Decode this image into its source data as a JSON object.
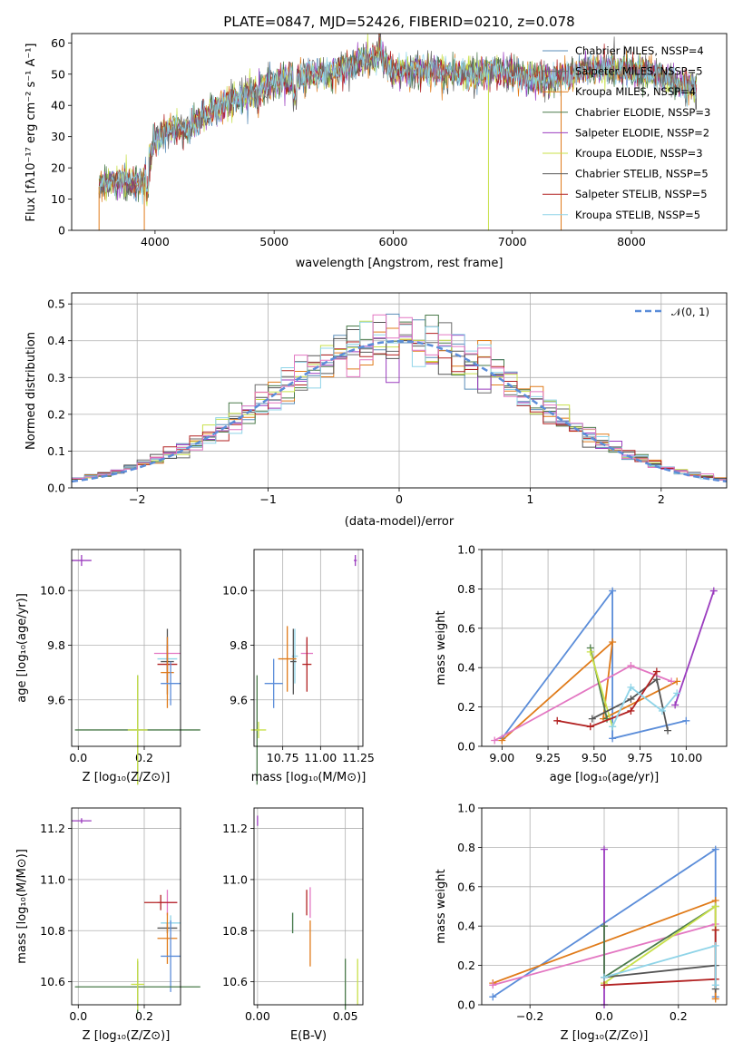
{
  "chart_data": [
    {
      "id": "spectrum",
      "type": "line",
      "title": "PLATE=0847, MJD=52426, FIBERID=0210, z=0.078",
      "xlabel": "wavelength [Angstrom, rest frame]",
      "ylabel": "Flux [fλ10⁻¹⁷ erg cm⁻² s⁻¹ A⁻¹]",
      "xlim": [
        3300,
        8800
      ],
      "ylim": [
        0,
        63
      ],
      "xticks": [
        4000,
        5000,
        6000,
        7000,
        8000
      ],
      "yticks": [
        0,
        10,
        20,
        30,
        40,
        50,
        60
      ],
      "grid": false,
      "legend_position": "top-right",
      "continuum": [
        [
          3530,
          14
        ],
        [
          3700,
          16
        ],
        [
          3900,
          15
        ],
        [
          3950,
          22
        ],
        [
          4000,
          29
        ],
        [
          4100,
          32
        ],
        [
          4300,
          33
        ],
        [
          4500,
          39
        ],
        [
          4800,
          44
        ],
        [
          5000,
          47
        ],
        [
          5200,
          49
        ],
        [
          5500,
          51
        ],
        [
          5800,
          55
        ],
        [
          5900,
          55
        ],
        [
          6000,
          51
        ],
        [
          6300,
          51
        ],
        [
          6600,
          50
        ],
        [
          6900,
          51
        ],
        [
          7300,
          48
        ],
        [
          7600,
          51
        ],
        [
          7800,
          52
        ],
        [
          8000,
          51
        ],
        [
          8200,
          50
        ],
        [
          8400,
          47
        ],
        [
          8550,
          45
        ]
      ],
      "series": [
        {
          "name": "Chabrier MILES, N_SSP=4",
          "color": "#5b8db8"
        },
        {
          "name": "Salpeter MILES, N_SSP=5",
          "color": "#6b6b6b"
        },
        {
          "name": "Kroupa MILES, N_SSP=4",
          "color": "#e07b1a"
        },
        {
          "name": "Chabrier ELODIE, N_SSP=3",
          "color": "#4a7a4a"
        },
        {
          "name": "Salpeter ELODIE, N_SSP=2",
          "color": "#9b3dbf"
        },
        {
          "name": "Kroupa ELODIE, N_SSP=3",
          "color": "#c8e04a"
        },
        {
          "name": "Chabrier STELIB, N_SSP=5",
          "color": "#555555"
        },
        {
          "name": "Salpeter STELIB, N_SSP=5",
          "color": "#b22222"
        },
        {
          "name": "Kroupa STELIB, N_SSP=5",
          "color": "#8fd4e8"
        }
      ]
    },
    {
      "id": "residuals",
      "type": "histogram",
      "xlabel": "(data-model)/error",
      "ylabel": "Normed distribution",
      "xlim": [
        -2.5,
        2.5
      ],
      "ylim": [
        0,
        0.53
      ],
      "xticks": [
        -2,
        -1,
        0,
        1,
        2
      ],
      "xtick_labels": [
        "−2",
        "−1",
        "0",
        "1",
        "2"
      ],
      "yticks": [
        0,
        0.1,
        0.2,
        0.3,
        0.4,
        0.5
      ],
      "ytick_labels": [
        "0.0",
        "0.1",
        "0.2",
        "0.3",
        "0.4",
        "0.5"
      ],
      "grid": true,
      "legend_position": "top-right",
      "reference_curve": {
        "name": "𝒩(0, 1)",
        "color": "#5b8dd9"
      },
      "bin_width": 0.1,
      "bin_start": -2.5,
      "series_colors": [
        "#5b8db8",
        "#6b6b6b",
        "#e07b1a",
        "#4a7a4a",
        "#9b3dbf",
        "#c8e04a",
        "#555555",
        "#b22222",
        "#8fd4e8",
        "#e377c2"
      ]
    },
    {
      "id": "age-vs-Z",
      "type": "errorbar",
      "xlabel": "Z [log₁₀(Z/Z⊙)]",
      "ylabel": "age  [log₁₀(age/yr)]",
      "xlim": [
        -0.02,
        0.31
      ],
      "ylim": [
        9.43,
        10.15
      ],
      "xticks": [
        0.0,
        0.2
      ],
      "xtick_labels": [
        "0.0",
        "0.2"
      ],
      "yticks": [
        9.6,
        9.8,
        10.0
      ],
      "ytick_labels": [
        "9.6",
        "9.8",
        "10.0"
      ],
      "grid": true,
      "points": [
        {
          "x": 0.01,
          "y": 10.11,
          "xerr": 0.03,
          "yerr": 0.02,
          "color": "#9b3dbf"
        },
        {
          "x": 0.27,
          "y": 9.77,
          "xerr": 0.04,
          "yerr": 0.06,
          "color": "#e377c2"
        },
        {
          "x": 0.27,
          "y": 9.75,
          "xerr": 0.03,
          "yerr": 0.08,
          "color": "#8fd4e8"
        },
        {
          "x": 0.27,
          "y": 9.74,
          "xerr": 0.02,
          "yerr": 0.12,
          "color": "#555555"
        },
        {
          "x": 0.27,
          "y": 9.73,
          "xerr": 0.03,
          "yerr": 0.07,
          "color": "#b22222"
        },
        {
          "x": 0.27,
          "y": 9.7,
          "xerr": 0.02,
          "yerr": 0.13,
          "color": "#e07b1a"
        },
        {
          "x": 0.28,
          "y": 9.66,
          "xerr": 0.03,
          "yerr": 0.08,
          "color": "#5b8dd9"
        },
        {
          "x": 0.18,
          "y": 9.49,
          "xerr": 0.19,
          "yerr": 0.2,
          "color": "#4a7a4a"
        },
        {
          "x": 0.18,
          "y": 9.49,
          "xerr": 0.03,
          "yerr": 0.2,
          "color": "#c8e04a"
        }
      ]
    },
    {
      "id": "age-vs-mass",
      "type": "errorbar",
      "xlabel": "mass [log₁₀(M/M⊙)]",
      "ylabel": "",
      "xlim": [
        10.56,
        11.28
      ],
      "ylim": [
        9.43,
        10.15
      ],
      "xticks": [
        10.75,
        11.0,
        11.25
      ],
      "xtick_labels": [
        "10.75",
        "11.00",
        "11.25"
      ],
      "yticks": [
        9.6,
        9.8,
        10.0
      ],
      "ytick_labels": [
        "9.6",
        "9.8",
        "10.0"
      ],
      "grid": true,
      "points": [
        {
          "x": 11.23,
          "y": 10.11,
          "xerr": 0.01,
          "yerr": 0.02,
          "color": "#9b3dbf"
        },
        {
          "x": 10.91,
          "y": 9.77,
          "xerr": 0.04,
          "yerr": 0.05,
          "color": "#e377c2"
        },
        {
          "x": 10.83,
          "y": 9.76,
          "xerr": 0.02,
          "yerr": 0.1,
          "color": "#8fd4e8"
        },
        {
          "x": 10.82,
          "y": 9.74,
          "xerr": 0.02,
          "yerr": 0.12,
          "color": "#555555"
        },
        {
          "x": 10.91,
          "y": 9.73,
          "xerr": 0.03,
          "yerr": 0.1,
          "color": "#b22222"
        },
        {
          "x": 10.78,
          "y": 9.75,
          "xerr": 0.06,
          "yerr": 0.12,
          "color": "#e07b1a"
        },
        {
          "x": 10.69,
          "y": 9.66,
          "xerr": 0.06,
          "yerr": 0.09,
          "color": "#5b8dd9"
        },
        {
          "x": 10.58,
          "y": 9.49,
          "xerr": 0.01,
          "yerr": 0.2,
          "color": "#4a7a4a"
        },
        {
          "x": 10.59,
          "y": 9.49,
          "xerr": 0.05,
          "yerr": 0.03,
          "color": "#c8e04a"
        }
      ]
    },
    {
      "id": "weight-vs-age",
      "type": "line",
      "xlabel": "age  [log₁₀(age/yr)]",
      "ylabel": "mass weight",
      "xlim": [
        8.89,
        10.22
      ],
      "ylim": [
        0,
        1
      ],
      "xticks": [
        9.0,
        9.25,
        9.5,
        9.75,
        10.0
      ],
      "xtick_labels": [
        "9.00",
        "9.25",
        "9.50",
        "9.75",
        "10.00"
      ],
      "yticks": [
        0,
        0.2,
        0.4,
        0.6,
        0.8,
        1.0
      ],
      "ytick_labels": [
        "0.0",
        "0.2",
        "0.4",
        "0.6",
        "0.8",
        "1.0"
      ],
      "grid": true,
      "series": [
        {
          "color": "#5b8dd9",
          "x": [
            9.0,
            9.6,
            9.6,
            10.0
          ],
          "y": [
            0.04,
            0.79,
            0.04,
            0.13
          ]
        },
        {
          "color": "#e07b1a",
          "x": [
            9.0,
            9.6,
            9.55,
            9.95
          ],
          "y": [
            0.03,
            0.53,
            0.14,
            0.33
          ]
        },
        {
          "color": "#e377c2",
          "x": [
            8.96,
            9.7,
            9.92
          ],
          "y": [
            0.03,
            0.41,
            0.33
          ]
        },
        {
          "color": "#9b3dbf",
          "x": [
            9.94,
            10.15
          ],
          "y": [
            0.21,
            0.79
          ]
        },
        {
          "color": "#4a7a4a",
          "x": [
            9.48,
            9.57
          ],
          "y": [
            0.5,
            0.14
          ]
        },
        {
          "color": "#c8e04a",
          "x": [
            9.48,
            9.6
          ],
          "y": [
            0.48,
            0.1
          ]
        },
        {
          "color": "#555555",
          "x": [
            9.49,
            9.7,
            9.84,
            9.9
          ],
          "y": [
            0.14,
            0.24,
            0.34,
            0.08
          ]
        },
        {
          "color": "#b22222",
          "x": [
            9.3,
            9.48,
            9.7,
            9.84
          ],
          "y": [
            0.13,
            0.1,
            0.18,
            0.38
          ]
        },
        {
          "color": "#8fd4e8",
          "x": [
            9.6,
            9.7,
            9.87,
            9.95
          ],
          "y": [
            0.1,
            0.3,
            0.18,
            0.27
          ]
        }
      ]
    },
    {
      "id": "mass-vs-Z",
      "type": "errorbar",
      "xlabel": "Z [log₁₀(Z/Z⊙)]",
      "ylabel": "mass [log₁₀(M/M⊙)]",
      "xlim": [
        -0.02,
        0.31
      ],
      "ylim": [
        10.51,
        11.28
      ],
      "xticks": [
        0.0,
        0.2
      ],
      "xtick_labels": [
        "0.0",
        "0.2"
      ],
      "yticks": [
        10.6,
        10.8,
        11.0,
        11.2
      ],
      "ytick_labels": [
        "10.6",
        "10.8",
        "11.0",
        "11.2"
      ],
      "grid": true,
      "points": [
        {
          "x": 0.01,
          "y": 11.23,
          "xerr": 0.03,
          "yerr": 0.01,
          "color": "#9b3dbf"
        },
        {
          "x": 0.27,
          "y": 10.91,
          "xerr": 0.03,
          "yerr": 0.05,
          "color": "#e377c2"
        },
        {
          "x": 0.25,
          "y": 10.91,
          "xerr": 0.05,
          "yerr": 0.03,
          "color": "#b22222"
        },
        {
          "x": 0.28,
          "y": 10.83,
          "xerr": 0.03,
          "yerr": 0.03,
          "color": "#8fd4e8"
        },
        {
          "x": 0.27,
          "y": 10.81,
          "xerr": 0.03,
          "yerr": 0.02,
          "color": "#555555"
        },
        {
          "x": 0.27,
          "y": 10.77,
          "xerr": 0.03,
          "yerr": 0.1,
          "color": "#e07b1a"
        },
        {
          "x": 0.28,
          "y": 10.7,
          "xerr": 0.03,
          "yerr": 0.14,
          "color": "#5b8dd9"
        },
        {
          "x": 0.18,
          "y": 10.58,
          "xerr": 0.19,
          "yerr": 0.1,
          "color": "#4a7a4a"
        },
        {
          "x": 0.18,
          "y": 10.59,
          "xerr": 0.02,
          "yerr": 0.1,
          "color": "#c8e04a"
        }
      ]
    },
    {
      "id": "mass-vs-EBV",
      "type": "errorbar",
      "xlabel": "E(B-V)",
      "ylabel": "",
      "xlim": [
        -0.002,
        0.06
      ],
      "ylim": [
        10.51,
        11.28
      ],
      "xticks": [
        0.0,
        0.05
      ],
      "xtick_labels": [
        "0.00",
        "0.05"
      ],
      "yticks": [
        10.6,
        10.8,
        11.0,
        11.2
      ],
      "ytick_labels": [
        "10.6",
        "10.8",
        "11.0",
        "11.2"
      ],
      "grid": true,
      "points": [
        {
          "x": 0.0,
          "y": 11.23,
          "xerr": 0.0,
          "yerr": 0.02,
          "color": "#9b3dbf"
        },
        {
          "x": 0.03,
          "y": 10.91,
          "xerr": 0.0,
          "yerr": 0.06,
          "color": "#e377c2"
        },
        {
          "x": 0.028,
          "y": 10.91,
          "xerr": 0.0,
          "yerr": 0.05,
          "color": "#b22222"
        },
        {
          "x": 0.02,
          "y": 10.83,
          "xerr": 0.0,
          "yerr": 0.04,
          "color": "#8fd4e8"
        },
        {
          "x": 0.02,
          "y": 10.83,
          "xerr": 0.0,
          "yerr": 0.04,
          "color": "#4a7a4a"
        },
        {
          "x": 0.03,
          "y": 10.75,
          "xerr": 0.0,
          "yerr": 0.09,
          "color": "#e07b1a"
        },
        {
          "x": 0.05,
          "y": 10.59,
          "xerr": 0.0,
          "yerr": 0.1,
          "color": "#4a7a4a"
        },
        {
          "x": 0.057,
          "y": 10.6,
          "xerr": 0.0,
          "yerr": 0.09,
          "color": "#c8e04a"
        }
      ]
    },
    {
      "id": "weight-vs-Z",
      "type": "line",
      "xlabel": "Z [log₁₀(Z/Z⊙)]",
      "ylabel": "mass weight",
      "xlim": [
        -0.33,
        0.33
      ],
      "ylim": [
        0,
        1
      ],
      "xticks": [
        -0.2,
        0.0,
        0.2
      ],
      "xtick_labels": [
        "−0.2",
        "0.0",
        "0.2"
      ],
      "yticks": [
        0,
        0.2,
        0.4,
        0.6,
        0.8,
        1.0
      ],
      "ytick_labels": [
        "0.0",
        "0.2",
        "0.4",
        "0.6",
        "0.8",
        "1.0"
      ],
      "grid": true,
      "series": [
        {
          "color": "#5b8dd9",
          "x": [
            -0.3,
            0.3,
            0.3
          ],
          "y": [
            0.04,
            0.79,
            0.04
          ]
        },
        {
          "color": "#e07b1a",
          "x": [
            -0.3,
            0.3,
            0.3
          ],
          "y": [
            0.11,
            0.53,
            0.03
          ]
        },
        {
          "color": "#e377c2",
          "x": [
            -0.3,
            0.3
          ],
          "y": [
            0.1,
            0.41
          ]
        },
        {
          "color": "#9b3dbf",
          "x": [
            0.0,
            0.0
          ],
          "y": [
            0.79,
            0.0
          ]
        },
        {
          "color": "#4a7a4a",
          "x": [
            0.0,
            0.0,
            0.3
          ],
          "y": [
            0.4,
            0.14,
            0.5
          ]
        },
        {
          "color": "#c8e04a",
          "x": [
            0.0,
            0.3,
            0.3
          ],
          "y": [
            0.11,
            0.5,
            0.38
          ]
        },
        {
          "color": "#555555",
          "x": [
            0.0,
            0.3,
            0.3
          ],
          "y": [
            0.14,
            0.2,
            0.08
          ]
        },
        {
          "color": "#b22222",
          "x": [
            0.0,
            0.3,
            0.3
          ],
          "y": [
            0.1,
            0.13,
            0.38
          ]
        },
        {
          "color": "#8fd4e8",
          "x": [
            0.0,
            0.3,
            0.3
          ],
          "y": [
            0.14,
            0.3,
            0.1
          ]
        }
      ]
    }
  ]
}
